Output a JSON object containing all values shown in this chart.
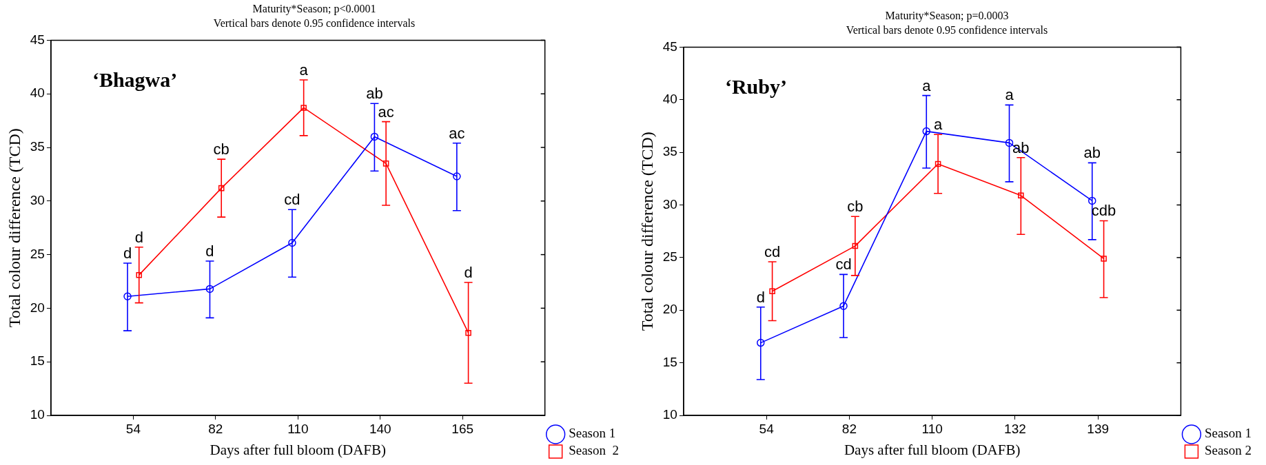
{
  "chart_data": [
    {
      "type": "line",
      "title": "Maturity*Season; p<0.0001",
      "subtitle": "Vertical bars denote 0.95 confidence intervals",
      "xlabel": "Days after full bloom (DAFB)",
      "ylabel": "Total colour difference (TCD)",
      "categories": [
        "54",
        "82",
        "110",
        "140",
        "165"
      ],
      "ylim": [
        10,
        45
      ],
      "yticks": [
        10,
        15,
        20,
        25,
        30,
        35,
        40,
        45
      ],
      "grid": false,
      "legend": "bottom right",
      "line_style": "solid",
      "series": [
        {
          "name": "Season 1",
          "color": "#0000ff",
          "marker": "circle",
          "values": [
            21.1,
            21.8,
            26.1,
            36.0,
            32.3
          ],
          "errors": [
            [
              17.9,
              24.2
            ],
            [
              19.1,
              24.4
            ],
            [
              22.9,
              29.2
            ],
            [
              32.8,
              39.1
            ],
            [
              29.1,
              35.4
            ]
          ]
        },
        {
          "name": "Season  2",
          "color": "#ff0000",
          "marker": "square",
          "values": [
            23.1,
            31.2,
            38.7,
            33.5,
            17.7
          ],
          "errors": [
            [
              20.5,
              25.7
            ],
            [
              28.5,
              33.9
            ],
            [
              36.1,
              41.3
            ],
            [
              29.6,
              37.4
            ],
            [
              13.0,
              22.4
            ]
          ]
        }
      ],
      "annotations": [
        "‘Bhagwa’",
        {
          "text": "d",
          "x": "54",
          "y": 24.2
        },
        {
          "text": "d",
          "x": "82",
          "y": 24.4
        },
        {
          "text": "cd",
          "x": "110",
          "y": 29.2
        },
        {
          "text": "ab",
          "x": "140",
          "y": 39.1
        },
        {
          "text": "ac",
          "x": "165",
          "y": 35.4
        },
        {
          "text": "d",
          "x": "54",
          "y": 25.7
        },
        {
          "text": "cb",
          "x": "82",
          "y": 33.9
        },
        {
          "text": "a",
          "x": "110",
          "y": 41.3
        },
        {
          "text": "ac",
          "x": "140",
          "y": 37.4
        },
        {
          "text": "d",
          "x": "165",
          "y": 22.4
        }
      ]
    },
    {
      "type": "line",
      "title": "Maturity*Season; p=0.0003",
      "subtitle": "Vertical bars denote 0.95 confidence intervals",
      "xlabel": "Days after full bloom (DAFB)",
      "ylabel": "Total colour difference (TCD)",
      "categories": [
        "54",
        "82",
        "110",
        "132",
        "139"
      ],
      "ylim": [
        10,
        45
      ],
      "yticks": [
        10,
        15,
        20,
        25,
        30,
        35,
        40,
        45
      ],
      "grid": false,
      "legend": "bottom right",
      "line_style": "solid",
      "series": [
        {
          "name": "Season 1",
          "color": "#0000ff",
          "marker": "circle",
          "values": [
            16.9,
            20.4,
            37.0,
            35.9,
            30.4
          ],
          "errors": [
            [
              13.4,
              20.3
            ],
            [
              17.4,
              23.4
            ],
            [
              33.5,
              40.4
            ],
            [
              32.2,
              39.5
            ],
            [
              26.7,
              34.0
            ]
          ]
        },
        {
          "name": "Season 2",
          "color": "#ff0000",
          "marker": "square",
          "values": [
            21.8,
            26.1,
            33.9,
            30.9,
            24.9
          ],
          "errors": [
            [
              19.0,
              24.6
            ],
            [
              23.3,
              28.9
            ],
            [
              31.1,
              36.7
            ],
            [
              27.2,
              34.5
            ],
            [
              21.2,
              28.5
            ]
          ]
        }
      ],
      "annotations": [
        "‘Ruby’",
        {
          "text": "d",
          "x": "54",
          "y": 20.3
        },
        {
          "text": "cd",
          "x": "82",
          "y": 23.4
        },
        {
          "text": "a",
          "x": "110",
          "y": 40.4
        },
        {
          "text": "a",
          "x": "132",
          "y": 39.5
        },
        {
          "text": "ab",
          "x": "139",
          "y": 34.0
        },
        {
          "text": "cd",
          "x": "54",
          "y": 24.6
        },
        {
          "text": "cb",
          "x": "82",
          "y": 28.9
        },
        {
          "text": "a",
          "x": "110",
          "y": 36.7
        },
        {
          "text": "ab",
          "x": "132",
          "y": 34.5
        },
        {
          "text": "cdb",
          "x": "139",
          "y": 28.5
        }
      ]
    }
  ]
}
